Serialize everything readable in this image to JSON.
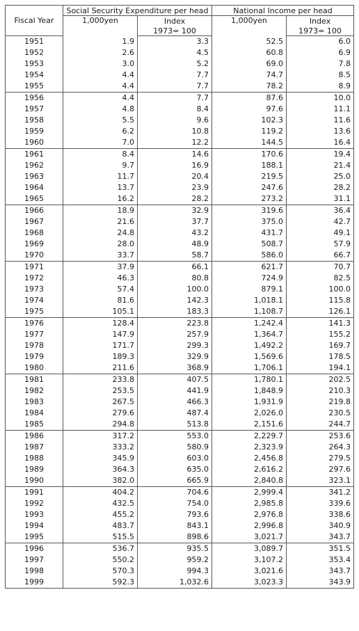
{
  "headers": {
    "fiscal_year": "Fiscal Year",
    "group_ss": "Social Security Expenditure per head",
    "group_ni": "National Income per head",
    "col_yen": "1,000yen",
    "col_index": "Index",
    "col_index_base": "1973= 100"
  },
  "rows": [
    [
      "1951",
      "1.9",
      "3.3",
      "52.5",
      "6.0"
    ],
    [
      "1952",
      "2.6",
      "4.5",
      "60.8",
      "6.9"
    ],
    [
      "1953",
      "3.0",
      "5.2",
      "69.0",
      "7.8"
    ],
    [
      "1954",
      "4.4",
      "7.7",
      "74.7",
      "8.5"
    ],
    [
      "1955",
      "4.4",
      "7.7",
      "78.2",
      "8.9"
    ],
    [
      "1956",
      "4.4",
      "7.7",
      "87.6",
      "10.0"
    ],
    [
      "1957",
      "4.8",
      "8.4",
      "97.6",
      "11.1"
    ],
    [
      "1958",
      "5.5",
      "9.6",
      "102.3",
      "11.6"
    ],
    [
      "1959",
      "6.2",
      "10.8",
      "119.2",
      "13.6"
    ],
    [
      "1960",
      "7.0",
      "12.2",
      "144.5",
      "16.4"
    ],
    [
      "1961",
      "8.4",
      "14.6",
      "170.6",
      "19.4"
    ],
    [
      "1962",
      "9.7",
      "16.9",
      "188.1",
      "21.4"
    ],
    [
      "1963",
      "11.7",
      "20.4",
      "219.5",
      "25.0"
    ],
    [
      "1964",
      "13.7",
      "23.9",
      "247.6",
      "28.2"
    ],
    [
      "1965",
      "16.2",
      "28.2",
      "273.2",
      "31.1"
    ],
    [
      "1966",
      "18.9",
      "32.9",
      "319.6",
      "36.4"
    ],
    [
      "1967",
      "21.6",
      "37.7",
      "375.0",
      "42.7"
    ],
    [
      "1968",
      "24.8",
      "43.2",
      "431.7",
      "49.1"
    ],
    [
      "1969",
      "28.0",
      "48.9",
      "508.7",
      "57.9"
    ],
    [
      "1970",
      "33.7",
      "58.7",
      "586.0",
      "66.7"
    ],
    [
      "1971",
      "37.9",
      "66.1",
      "621.7",
      "70.7"
    ],
    [
      "1972",
      "46.3",
      "80.8",
      "724.9",
      "82.5"
    ],
    [
      "1973",
      "57.4",
      "100.0",
      "879.1",
      "100.0"
    ],
    [
      "1974",
      "81.6",
      "142.3",
      "1,018.1",
      "115.8"
    ],
    [
      "1975",
      "105.1",
      "183.3",
      "1,108.7",
      "126.1"
    ],
    [
      "1976",
      "128.4",
      "223.8",
      "1,242.4",
      "141.3"
    ],
    [
      "1977",
      "147.9",
      "257.9",
      "1,364.7",
      "155.2"
    ],
    [
      "1978",
      "171.7",
      "299.3",
      "1,492.2",
      "169.7"
    ],
    [
      "1979",
      "189.3",
      "329.9",
      "1,569.6",
      "178.5"
    ],
    [
      "1980",
      "211.6",
      "368.9",
      "1,706.1",
      "194.1"
    ],
    [
      "1981",
      "233.8",
      "407.5",
      "1,780.1",
      "202.5"
    ],
    [
      "1982",
      "253.5",
      "441.9",
      "1,848.9",
      "210.3"
    ],
    [
      "1983",
      "267.5",
      "466.3",
      "1,931.9",
      "219.8"
    ],
    [
      "1984",
      "279.6",
      "487.4",
      "2,026.0",
      "230.5"
    ],
    [
      "1985",
      "294.8",
      "513.8",
      "2,151.6",
      "244.7"
    ],
    [
      "1986",
      "317.2",
      "553.0",
      "2,229.7",
      "253.6"
    ],
    [
      "1987",
      "333.2",
      "580.9",
      "2,323.9",
      "264.3"
    ],
    [
      "1988",
      "345.9",
      "603.0",
      "2,456.8",
      "279.5"
    ],
    [
      "1989",
      "364.3",
      "635.0",
      "2,616.2",
      "297.6"
    ],
    [
      "1990",
      "382.0",
      "665.9",
      "2,840.8",
      "323.1"
    ],
    [
      "1991",
      "404.2",
      "704.6",
      "2,999.4",
      "341.2"
    ],
    [
      "1992",
      "432.5",
      "754.0",
      "2,985.8",
      "339.6"
    ],
    [
      "1993",
      "455.2",
      "793.6",
      "2,976.8",
      "338.6"
    ],
    [
      "1994",
      "483.7",
      "843.1",
      "2,996.8",
      "340.9"
    ],
    [
      "1995",
      "515.5",
      "898.6",
      "3,021.7",
      "343.7"
    ],
    [
      "1996",
      "536.7",
      "935.5",
      "3,089.7",
      "351.5"
    ],
    [
      "1997",
      "550.2",
      "959.2",
      "3,107.2",
      "353.4"
    ],
    [
      "1998",
      "570.3",
      "994.3",
      "3,021.6",
      "343.7"
    ],
    [
      "1999",
      "592.3",
      "1,032.6",
      "3,023.3",
      "343.9"
    ]
  ]
}
